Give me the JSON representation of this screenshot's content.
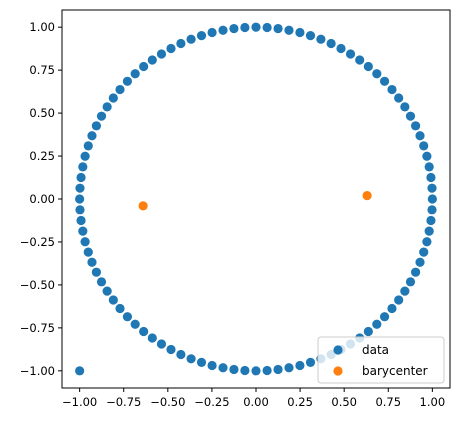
{
  "chart_data": {
    "type": "scatter",
    "title": "",
    "xlabel": "",
    "ylabel": "",
    "xlim": [
      -1.1,
      1.1
    ],
    "ylim": [
      -1.1,
      1.1
    ],
    "grid": false,
    "legend_position": "bottom-right",
    "xticks": [
      "−1.00",
      "−0.75",
      "−0.50",
      "−0.25",
      "0.00",
      "0.25",
      "0.50",
      "0.75",
      "1.00"
    ],
    "yticks": [
      "−1.00",
      "−0.75",
      "−0.50",
      "−0.25",
      "0.00",
      "0.25",
      "0.50",
      "0.75",
      "1.00"
    ],
    "xtick_values": [
      -1.0,
      -0.75,
      -0.5,
      -0.25,
      0.0,
      0.25,
      0.5,
      0.75,
      1.0
    ],
    "ytick_values": [
      -1.0,
      -0.75,
      -0.5,
      -0.25,
      0.0,
      0.25,
      0.5,
      0.75,
      1.0
    ],
    "series": [
      {
        "name": "data",
        "color": "#1f77b4",
        "points": [
          [
            1.0,
            0.0
          ],
          [
            0.998,
            0.063
          ],
          [
            0.992,
            0.125
          ],
          [
            0.982,
            0.187
          ],
          [
            0.969,
            0.249
          ],
          [
            0.951,
            0.309
          ],
          [
            0.93,
            0.368
          ],
          [
            0.905,
            0.426
          ],
          [
            0.876,
            0.482
          ],
          [
            0.844,
            0.536
          ],
          [
            0.809,
            0.588
          ],
          [
            0.771,
            0.637
          ],
          [
            0.729,
            0.685
          ],
          [
            0.685,
            0.729
          ],
          [
            0.637,
            0.771
          ],
          [
            0.588,
            0.809
          ],
          [
            0.536,
            0.844
          ],
          [
            0.482,
            0.876
          ],
          [
            0.426,
            0.905
          ],
          [
            0.368,
            0.93
          ],
          [
            0.309,
            0.951
          ],
          [
            0.249,
            0.969
          ],
          [
            0.187,
            0.982
          ],
          [
            0.125,
            0.992
          ],
          [
            0.063,
            0.998
          ],
          [
            0.0,
            1.0
          ],
          [
            -0.063,
            0.998
          ],
          [
            -0.125,
            0.992
          ],
          [
            -0.187,
            0.982
          ],
          [
            -0.249,
            0.969
          ],
          [
            -0.309,
            0.951
          ],
          [
            -0.368,
            0.93
          ],
          [
            -0.426,
            0.905
          ],
          [
            -0.482,
            0.876
          ],
          [
            -0.536,
            0.844
          ],
          [
            -0.588,
            0.809
          ],
          [
            -0.637,
            0.771
          ],
          [
            -0.685,
            0.729
          ],
          [
            -0.729,
            0.685
          ],
          [
            -0.771,
            0.637
          ],
          [
            -0.809,
            0.588
          ],
          [
            -0.844,
            0.536
          ],
          [
            -0.876,
            0.482
          ],
          [
            -0.905,
            0.426
          ],
          [
            -0.93,
            0.368
          ],
          [
            -0.951,
            0.309
          ],
          [
            -0.969,
            0.249
          ],
          [
            -0.982,
            0.187
          ],
          [
            -0.992,
            0.125
          ],
          [
            -0.998,
            0.063
          ],
          [
            -1.0,
            0.0
          ],
          [
            -0.998,
            -0.063
          ],
          [
            -0.992,
            -0.125
          ],
          [
            -0.982,
            -0.187
          ],
          [
            -0.969,
            -0.249
          ],
          [
            -0.951,
            -0.309
          ],
          [
            -0.93,
            -0.368
          ],
          [
            -0.905,
            -0.426
          ],
          [
            -0.876,
            -0.482
          ],
          [
            -0.844,
            -0.536
          ],
          [
            -0.809,
            -0.588
          ],
          [
            -0.771,
            -0.637
          ],
          [
            -0.729,
            -0.685
          ],
          [
            -0.685,
            -0.729
          ],
          [
            -0.637,
            -0.771
          ],
          [
            -0.588,
            -0.809
          ],
          [
            -0.536,
            -0.844
          ],
          [
            -0.482,
            -0.876
          ],
          [
            -0.426,
            -0.905
          ],
          [
            -0.368,
            -0.93
          ],
          [
            -0.309,
            -0.951
          ],
          [
            -0.249,
            -0.969
          ],
          [
            -0.187,
            -0.982
          ],
          [
            -0.125,
            -0.992
          ],
          [
            -0.063,
            -0.998
          ],
          [
            0.0,
            -1.0
          ],
          [
            0.063,
            -0.998
          ],
          [
            0.125,
            -0.992
          ],
          [
            0.187,
            -0.982
          ],
          [
            0.249,
            -0.969
          ],
          [
            0.309,
            -0.951
          ],
          [
            0.368,
            -0.93
          ],
          [
            0.426,
            -0.905
          ],
          [
            0.482,
            -0.876
          ],
          [
            0.536,
            -0.844
          ],
          [
            0.588,
            -0.809
          ],
          [
            0.637,
            -0.771
          ],
          [
            0.685,
            -0.729
          ],
          [
            0.729,
            -0.685
          ],
          [
            0.771,
            -0.637
          ],
          [
            0.809,
            -0.588
          ],
          [
            0.844,
            -0.536
          ],
          [
            0.876,
            -0.482
          ],
          [
            0.905,
            -0.426
          ],
          [
            0.93,
            -0.368
          ],
          [
            0.951,
            -0.309
          ],
          [
            0.969,
            -0.249
          ],
          [
            0.982,
            -0.187
          ],
          [
            0.992,
            -0.125
          ],
          [
            0.998,
            -0.063
          ],
          [
            -1.0,
            -1.0
          ]
        ]
      },
      {
        "name": "barycenter",
        "color": "#ff7f0e",
        "points": [
          [
            -0.64,
            -0.04
          ],
          [
            0.63,
            0.02
          ]
        ]
      }
    ]
  }
}
